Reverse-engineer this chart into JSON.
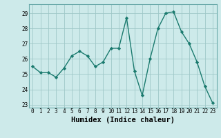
{
  "x": [
    0,
    1,
    2,
    3,
    4,
    5,
    6,
    7,
    8,
    9,
    10,
    11,
    12,
    13,
    14,
    15,
    16,
    17,
    18,
    19,
    20,
    21,
    22,
    23
  ],
  "y": [
    25.5,
    25.1,
    25.1,
    24.8,
    25.4,
    26.2,
    26.5,
    26.2,
    25.5,
    25.8,
    26.7,
    26.7,
    28.7,
    25.2,
    23.6,
    26.0,
    28.0,
    29.0,
    29.1,
    27.8,
    27.0,
    25.8,
    24.2,
    23.1
  ],
  "line_color": "#1a7a6e",
  "marker": "D",
  "markersize": 2.2,
  "linewidth": 1.0,
  "xlabel": "Humidex (Indice chaleur)",
  "xlim": [
    -0.5,
    23.5
  ],
  "ylim": [
    22.8,
    29.6
  ],
  "yticks": [
    23,
    24,
    25,
    26,
    27,
    28,
    29
  ],
  "xticks": [
    0,
    1,
    2,
    3,
    4,
    5,
    6,
    7,
    8,
    9,
    10,
    11,
    12,
    13,
    14,
    15,
    16,
    17,
    18,
    19,
    20,
    21,
    22,
    23
  ],
  "bg_color": "#cdeaea",
  "grid_color": "#9fc8c8",
  "tick_labelsize": 5.5,
  "xlabel_fontsize": 7.5
}
